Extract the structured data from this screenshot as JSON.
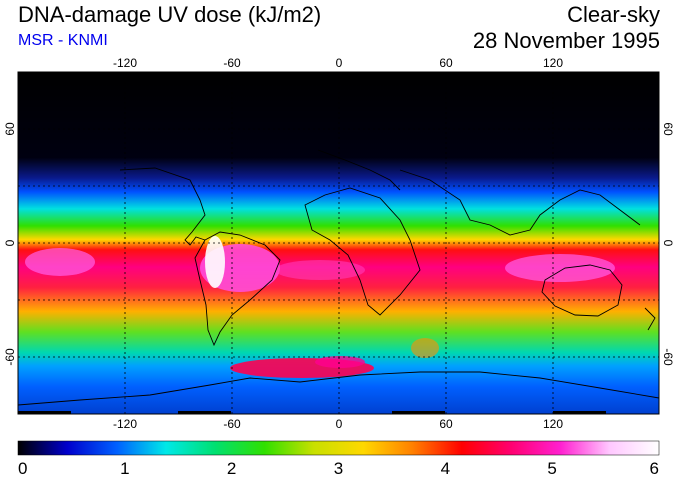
{
  "header": {
    "title": "DNA-damage UV dose (kJ/m2)",
    "source": "MSR - KNMI",
    "condition": "Clear-sky",
    "date": "28 November 1995"
  },
  "map": {
    "projection": "equirectangular",
    "lon_range": [
      -180,
      180
    ],
    "lat_range": [
      -90,
      90
    ],
    "lon_ticks": [
      -120,
      -60,
      0,
      60,
      120
    ],
    "lon_tick_labels": [
      "-120",
      "-60",
      "0",
      "60",
      "120"
    ],
    "lat_ticks": [
      60,
      0,
      -60
    ],
    "lat_tick_labels": [
      "60",
      "0",
      "-60"
    ],
    "grid": true,
    "coastlines": true
  },
  "colorbar": {
    "min": 0,
    "max": 6,
    "tick_labels": [
      "0",
      "1",
      "2",
      "3",
      "4",
      "5",
      "6"
    ],
    "colors": [
      "#000000",
      "#0000cc",
      "#0060ff",
      "#00e8e8",
      "#00e070",
      "#30e000",
      "#c8e000",
      "#ffd800",
      "#ff8000",
      "#ff0000",
      "#ff0070",
      "#ff20d0",
      "#ffc8ff",
      "#ffffff"
    ]
  }
}
